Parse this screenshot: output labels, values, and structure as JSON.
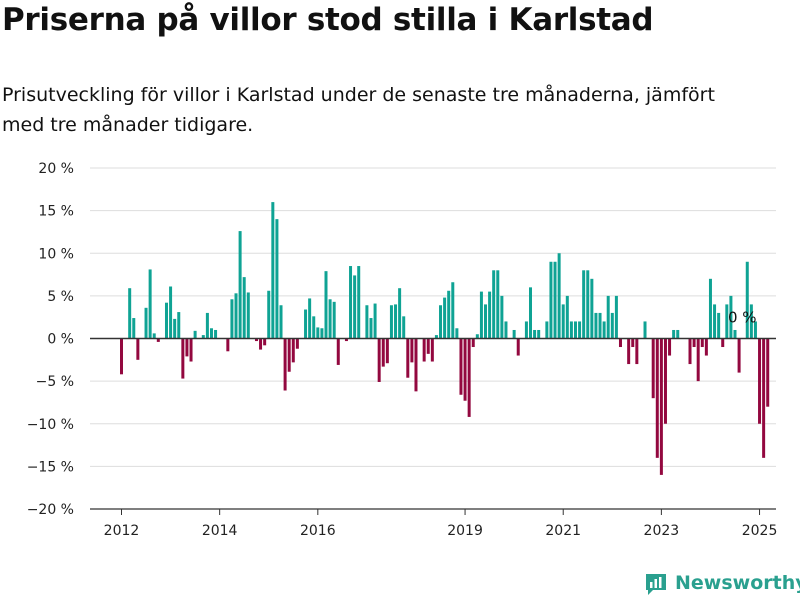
{
  "title": "Priserna på villor stod stilla i Karlstad",
  "subtitle": "Prisutveckling för villor i Karlstad under de senaste tre månaderna, jämfört med tre månader tidigare.",
  "brand": {
    "name": "Newsworthy",
    "icon": "bar-chart-logo-icon"
  },
  "colors": {
    "positive": "#0fa394",
    "negative": "#93083f",
    "grid": "#dddddd",
    "brand": "#2aa08f"
  },
  "chart_data": {
    "type": "bar",
    "x_unit": "month",
    "start": "2012-01",
    "ylim": [
      -20,
      20
    ],
    "yticks": [
      20,
      15,
      10,
      5,
      0,
      -5,
      -10,
      -15,
      -20
    ],
    "ytick_labels": [
      "20 %",
      "15 %",
      "10 %",
      "5 %",
      "0 %",
      "−5 %",
      "−10 %",
      "−15 %",
      "−20 %"
    ],
    "xticks": [
      2012,
      2014,
      2016,
      2019,
      2021,
      2023,
      2025
    ],
    "xtick_labels": [
      "2012",
      "2014",
      "2016",
      "2019",
      "2021",
      "2023",
      "2025"
    ],
    "grid": true,
    "annotation": "0 %",
    "values": [
      -4.2,
      0.0,
      5.9,
      2.4,
      -2.5,
      0.0,
      3.6,
      8.1,
      0.6,
      -0.4,
      0.0,
      4.2,
      6.1,
      2.3,
      3.1,
      -4.7,
      -2.1,
      -2.7,
      0.9,
      0.0,
      0.4,
      3.0,
      1.2,
      1.0,
      0.0,
      0.0,
      -1.5,
      4.6,
      5.3,
      12.6,
      7.2,
      5.4,
      0.0,
      -0.3,
      -1.3,
      -0.8,
      5.6,
      16.0,
      14.0,
      3.9,
      -6.1,
      -3.9,
      -2.8,
      -1.2,
      0.0,
      3.4,
      4.7,
      2.6,
      1.3,
      1.2,
      7.9,
      4.6,
      4.3,
      -3.1,
      0.0,
      -0.3,
      8.5,
      7.4,
      8.5,
      0.0,
      3.9,
      2.4,
      4.1,
      -5.1,
      -3.3,
      -2.9,
      3.9,
      4.0,
      5.9,
      2.6,
      -4.6,
      -2.8,
      -6.2,
      0.0,
      -2.7,
      -1.8,
      -2.7,
      0.4,
      3.9,
      4.8,
      5.6,
      6.6,
      1.2,
      -6.6,
      -7.3,
      -9.2,
      -1.0,
      0.5,
      5.5,
      4.0,
      5.5,
      8.0,
      8.0,
      5.0,
      2.0,
      0.0,
      1.0,
      -2.0,
      0.0,
      2.0,
      6.0,
      1.0,
      1.0,
      0.0,
      2.0,
      9.0,
      9.0,
      10.0,
      4.0,
      5.0,
      2.0,
      2.0,
      2.0,
      8.0,
      8.0,
      7.0,
      3.0,
      3.0,
      2.0,
      5.0,
      3.0,
      5.0,
      -1.0,
      0.0,
      -3.0,
      -1.0,
      -3.0,
      0.0,
      2.0,
      0.0,
      -7.0,
      -14.0,
      -16.0,
      -10.0,
      -2.0,
      1.0,
      1.0,
      0.0,
      0.0,
      -3.0,
      -1.0,
      -5.0,
      -1.0,
      -2.0,
      7.0,
      4.0,
      3.0,
      -1.0,
      4.0,
      5.0,
      1.0,
      -4.0,
      0.0,
      9.0,
      4.0,
      2.0,
      -10.0,
      -14.0,
      -8.0
    ]
  }
}
